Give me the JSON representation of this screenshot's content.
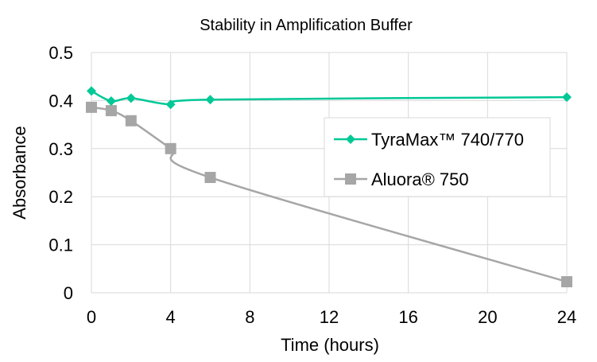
{
  "chart_data": {
    "type": "line",
    "title": "Stability in Amplification Buffer",
    "xlabel": "Time (hours)",
    "ylabel": "Absorbance",
    "xlim": [
      0,
      24
    ],
    "ylim": [
      0,
      0.5
    ],
    "xticks": [
      0,
      4,
      8,
      12,
      16,
      20,
      24
    ],
    "yticks": [
      0,
      0.1,
      0.2,
      0.3,
      0.4,
      0.5
    ],
    "ytick_labels": [
      "0",
      "0.1",
      "0.2",
      "0.3",
      "0.4",
      "0.5"
    ],
    "grid": true,
    "legend_position": "right",
    "smooth": true,
    "series": [
      {
        "name": "TyraMax™ 740/770",
        "color": "#00c896",
        "marker": "diamond",
        "x": [
          0,
          1,
          2,
          4,
          6,
          24
        ],
        "y": [
          0.42,
          0.399,
          0.405,
          0.392,
          0.402,
          0.407
        ]
      },
      {
        "name": "Aluora® 750",
        "color": "#a6a6a6",
        "marker": "square",
        "x": [
          0,
          1,
          2,
          4,
          6,
          24
        ],
        "y": [
          0.386,
          0.379,
          0.358,
          0.3,
          0.24,
          0.023
        ]
      }
    ]
  }
}
